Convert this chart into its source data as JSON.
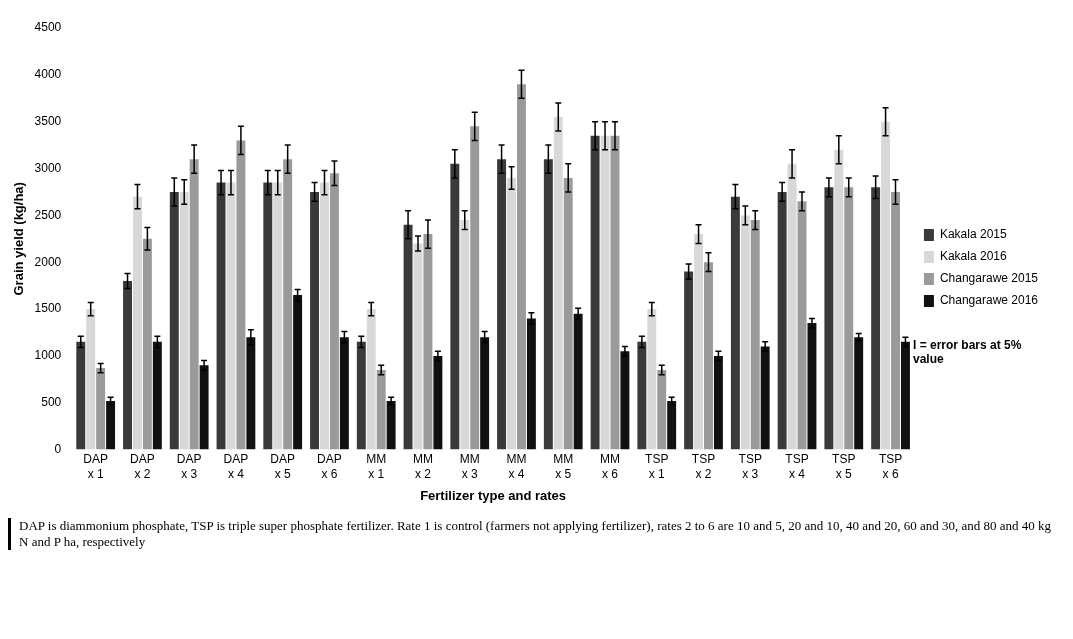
{
  "chart_data": {
    "type": "bar",
    "xlabel": "Fertilizer type and rates",
    "ylabel": "Grain yield (kg/ha)",
    "categories": [
      "DAP x 1",
      "DAP x 2",
      "DAP x 3",
      "DAP x 4",
      "DAP x 5",
      "DAP x 6",
      "MM x 1",
      "MM x 2",
      "MM x 3",
      "MM x 4",
      "MM x 5",
      "MM x 6",
      "TSP x 1",
      "TSP x 2",
      "TSP x 3",
      "TSP x 4",
      "TSP x 5",
      "TSP x 6"
    ],
    "series": [
      {
        "name": "Kakala 2015",
        "color": "#3a3a3a",
        "values": [
          1150,
          1800,
          2750,
          2850,
          2850,
          2750,
          1150,
          2400,
          3050,
          3100,
          3100,
          3350,
          1150,
          1900,
          2700,
          2750,
          2800,
          2800
        ],
        "errors": [
          60,
          80,
          150,
          130,
          130,
          100,
          60,
          150,
          150,
          150,
          150,
          150,
          60,
          80,
          130,
          100,
          100,
          120
        ]
      },
      {
        "name": "Kakala 2016",
        "color": "#d8d8d8",
        "values": [
          1500,
          2700,
          2750,
          2850,
          2850,
          2850,
          1500,
          2200,
          2450,
          2900,
          3550,
          3350,
          1500,
          2300,
          2500,
          3050,
          3200,
          3500
        ],
        "errors": [
          70,
          130,
          130,
          130,
          130,
          130,
          70,
          80,
          100,
          120,
          150,
          150,
          70,
          100,
          100,
          150,
          150,
          150
        ]
      },
      {
        "name": "Changarawe 2015",
        "color": "#9a9a9a",
        "values": [
          870,
          2250,
          3100,
          3300,
          3100,
          2950,
          850,
          2300,
          3450,
          3900,
          2900,
          3350,
          850,
          2000,
          2450,
          2650,
          2800,
          2750
        ],
        "errors": [
          50,
          120,
          150,
          150,
          150,
          130,
          50,
          150,
          150,
          150,
          150,
          150,
          50,
          100,
          100,
          100,
          100,
          130
        ]
      },
      {
        "name": "Changarawe 2016",
        "color": "#111111",
        "values": [
          520,
          1150,
          900,
          1200,
          1650,
          1200,
          520,
          1000,
          1200,
          1400,
          1450,
          1050,
          520,
          1000,
          1100,
          1350,
          1200,
          1150
        ],
        "errors": [
          40,
          60,
          50,
          80,
          60,
          60,
          40,
          50,
          60,
          60,
          60,
          50,
          40,
          50,
          50,
          50,
          40,
          50
        ]
      }
    ],
    "ylim": [
      0,
      4500
    ],
    "yticks": [
      0,
      500,
      1000,
      1500,
      2000,
      2500,
      3000,
      3500,
      4000,
      4500
    ],
    "grid": false,
    "legend": "right",
    "annotations": [
      "I = error bars at 5% value",
      "DAP is diammonium phosphate, TSP is triple super phosphate fertilizer. Rate 1 is control (farmers not applying fertilizer), rates 2 to 6 are 10 and 5, 20 and 10, 40 and 20, 60 and 30, and 80 and 40 kg N and P ha, respectively"
    ]
  }
}
